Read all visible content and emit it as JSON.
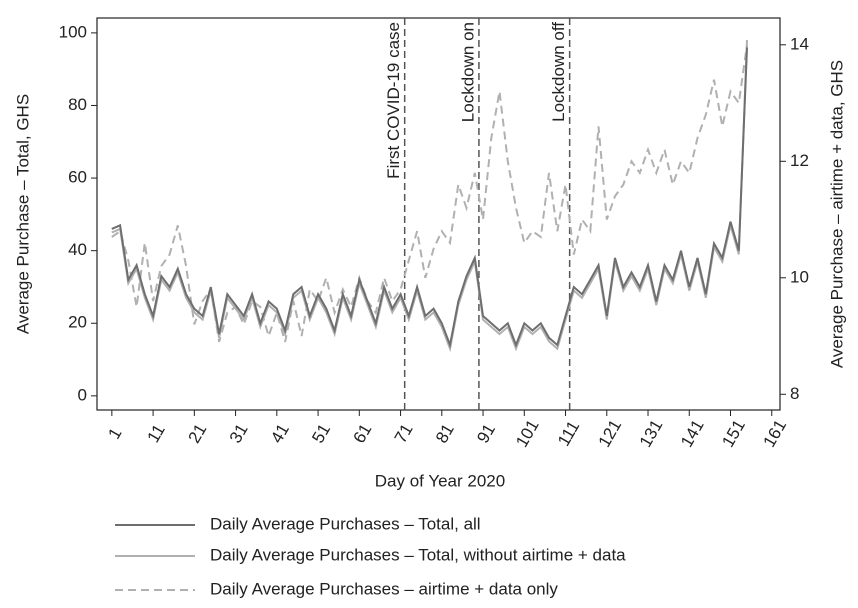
{
  "chart_data": {
    "type": "line",
    "x_label": "Day of Year 2020",
    "y_label": "Average Purchase – Total, GHS",
    "y2_label": "Average Purchase – airtime + data, GHS",
    "x": [
      1,
      3,
      5,
      7,
      9,
      11,
      13,
      15,
      17,
      19,
      21,
      23,
      25,
      27,
      29,
      31,
      33,
      35,
      37,
      39,
      41,
      43,
      45,
      47,
      49,
      51,
      53,
      55,
      57,
      59,
      61,
      63,
      65,
      67,
      69,
      71,
      73,
      75,
      77,
      79,
      81,
      83,
      85,
      87,
      89,
      91,
      93,
      95,
      97,
      99,
      101,
      103,
      105,
      107,
      109,
      111,
      113,
      115,
      117,
      119,
      121,
      123,
      125,
      127,
      129,
      131,
      133,
      135,
      137,
      139,
      141,
      143,
      145,
      147,
      149,
      151,
      153,
      155
    ],
    "series": [
      {
        "name": "Daily Average Purchases – Total, all",
        "color": "#6e6e6e",
        "dash": false,
        "values": [
          46,
          47,
          32,
          36,
          28,
          22,
          33,
          30,
          35,
          28,
          24,
          22,
          30,
          17,
          28,
          25,
          22,
          28,
          20,
          26,
          24,
          18,
          28,
          30,
          22,
          28,
          24,
          18,
          28,
          22,
          32,
          26,
          20,
          30,
          24,
          28,
          22,
          30,
          22,
          24,
          20,
          14,
          26,
          33,
          38,
          22,
          20,
          18,
          20,
          14,
          20,
          18,
          20,
          16,
          14,
          22,
          30,
          28,
          32,
          36,
          22,
          38,
          30,
          34,
          30,
          36,
          26,
          36,
          32,
          40,
          30,
          38,
          28,
          42,
          38,
          48,
          40,
          96
        ]
      },
      {
        "name": "Daily Average Purchases – Total, without airtime + data",
        "color": "#b0b0b0",
        "dash": false,
        "values": [
          45,
          46,
          31,
          35,
          27,
          21,
          32,
          29,
          34,
          27,
          23,
          21,
          29,
          16,
          27,
          24,
          21,
          27,
          19,
          25,
          23,
          17,
          27,
          29,
          21,
          27,
          23,
          17,
          27,
          21,
          31,
          25,
          19,
          29,
          23,
          27,
          21,
          29,
          21,
          23,
          19,
          13,
          25,
          32,
          37,
          21,
          19,
          17,
          19,
          13,
          19,
          17,
          19,
          15,
          13,
          21,
          29,
          27,
          31,
          35,
          21,
          37,
          29,
          33,
          29,
          35,
          25,
          35,
          31,
          39,
          29,
          37,
          27,
          41,
          37,
          47,
          39,
          98
        ]
      },
      {
        "name": "Daily Average Purchases – airtime + data only",
        "color": "#b0b0b0",
        "dash": true,
        "axis": "y2",
        "values": [
          10.7,
          10.8,
          10.3,
          9.5,
          10.6,
          9.6,
          10.2,
          10.4,
          10.9,
          10.2,
          9.2,
          9.6,
          9.8,
          8.9,
          9.4,
          9.5,
          9.2,
          9.6,
          9.5,
          9.0,
          9.4,
          8.9,
          9.6,
          9.0,
          9.8,
          9.6,
          10.0,
          9.4,
          9.8,
          9.5,
          10.0,
          9.6,
          9.4,
          10.0,
          9.6,
          9.8,
          10.3,
          10.8,
          10.0,
          10.5,
          10.8,
          10.6,
          11.6,
          11.2,
          11.8,
          11.0,
          12.4,
          13.2,
          12.0,
          11.2,
          10.6,
          10.8,
          10.7,
          11.8,
          10.8,
          11.6,
          10.4,
          11.0,
          10.8,
          12.6,
          11.0,
          11.4,
          11.6,
          12.0,
          11.8,
          12.2,
          11.8,
          12.2,
          11.6,
          12.0,
          11.8,
          12.4,
          12.8,
          13.4,
          12.6,
          13.2,
          13.0,
          14.0
        ]
      }
    ],
    "xlim": [
      -2.6,
      163
    ],
    "xticks": [
      1,
      11,
      21,
      31,
      41,
      51,
      61,
      71,
      81,
      91,
      101,
      111,
      121,
      131,
      141,
      151,
      161
    ],
    "ylim": [
      -3.9,
      104.1
    ],
    "yticks": [
      0,
      20,
      40,
      60,
      80,
      100
    ],
    "y2lim": [
      7.73,
      14.46
    ],
    "y2ticks": [
      8,
      10,
      12,
      14
    ],
    "annotations": [
      {
        "x": 72,
        "text": "First COVID-19 case"
      },
      {
        "x": 90,
        "text": "Lockdown on"
      },
      {
        "x": 112,
        "text": "Lockdown off"
      }
    ],
    "grid": false,
    "legend": "bottom"
  }
}
